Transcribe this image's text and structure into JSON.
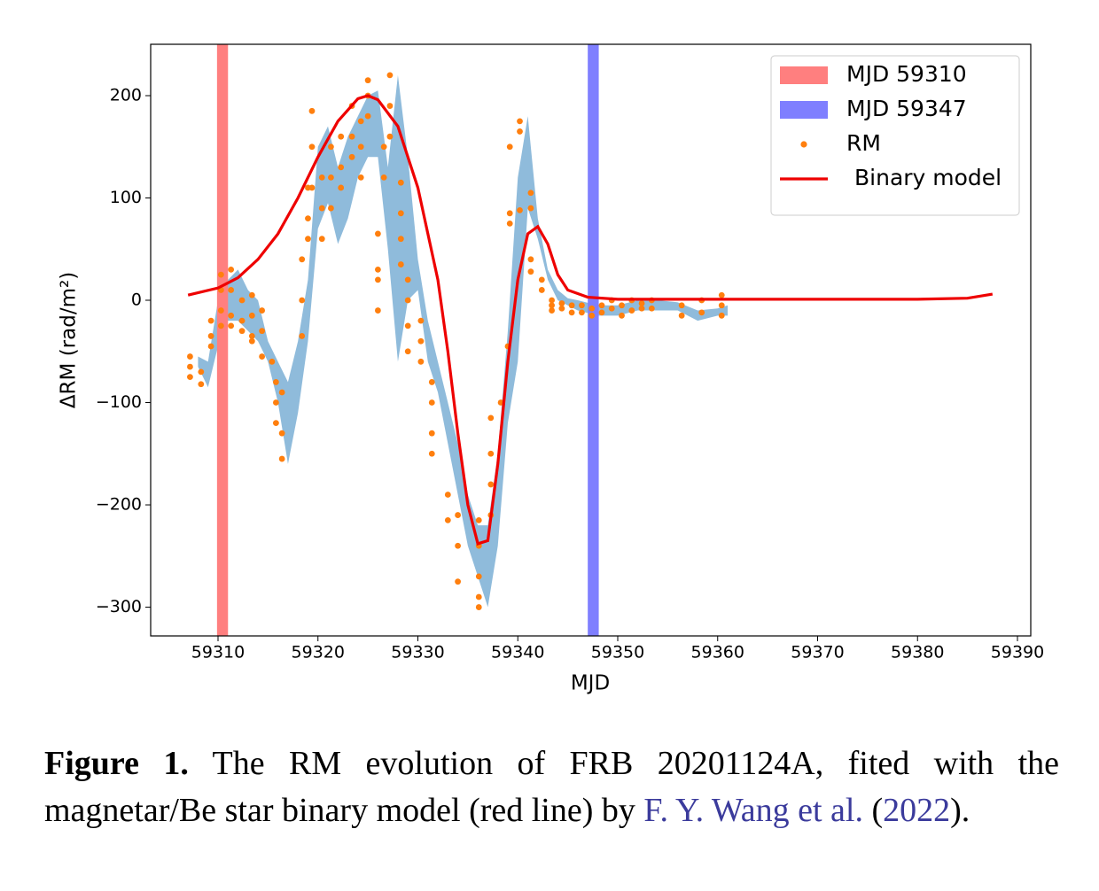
{
  "chart_data": {
    "type": "line",
    "xlabel": "MJD",
    "ylabel": "ΔRM (rad/m²)",
    "xlim": [
      59303.26,
      59391.33
    ],
    "ylim": [
      -328.1,
      250.2
    ],
    "xticks": [
      59310,
      59320,
      59330,
      59340,
      59350,
      59360,
      59370,
      59380,
      59390
    ],
    "yticks": [
      {
        "value": -300,
        "label": "−300"
      },
      {
        "value": -200,
        "label": "−200"
      },
      {
        "value": -100,
        "label": "−100"
      },
      0,
      100,
      200
    ],
    "legend": "upper right",
    "spans": [
      {
        "name": "MJD 59310",
        "color": "#ff7f7f",
        "xrange": [
          59309.9,
          59311.0
        ]
      },
      {
        "name": "MJD 59347",
        "color": "#7f7fff",
        "xrange": [
          59347.0,
          59348.1
        ]
      }
    ],
    "band": {
      "color": "#8fbbdb",
      "x": [
        59308,
        59309,
        59310,
        59311,
        59312,
        59313,
        59314,
        59315,
        59316,
        59317,
        59318,
        59319,
        59320,
        59321,
        59322,
        59323,
        59324,
        59325,
        59326,
        59327,
        59328,
        59329,
        59330,
        59331,
        59332,
        59333,
        59334,
        59335,
        59336,
        59337,
        59338,
        59339,
        59340,
        59341,
        59342,
        59343,
        59344,
        59345,
        59346,
        59348,
        59350,
        59352,
        59354,
        59356,
        59358,
        59360,
        59361
      ],
      "lower": [
        -65,
        -85,
        -45,
        -20,
        -20,
        -30,
        -40,
        -60,
        -100,
        -160,
        -110,
        -40,
        70,
        95,
        55,
        80,
        120,
        140,
        140,
        50,
        -60,
        0,
        10,
        -60,
        -90,
        -140,
        -190,
        -240,
        -270,
        -300,
        -240,
        -120,
        -60,
        90,
        60,
        20,
        0,
        -5,
        -10,
        -15,
        -15,
        -10,
        -10,
        -10,
        -20,
        -15,
        -15
      ],
      "upper": [
        -55,
        -60,
        0,
        20,
        30,
        10,
        0,
        -40,
        -60,
        -80,
        -40,
        20,
        150,
        170,
        130,
        160,
        180,
        200,
        205,
        130,
        220,
        140,
        40,
        -20,
        -60,
        -100,
        -140,
        -190,
        -220,
        -220,
        -150,
        -30,
        120,
        180,
        80,
        30,
        10,
        2,
        0,
        -5,
        -5,
        0,
        0,
        -2,
        -10,
        -8,
        -5
      ]
    },
    "series": [
      {
        "name": "RM",
        "type": "scatter",
        "color": "#ff7f0e",
        "x": [
          59307.2,
          59307.2,
          59307.2,
          59308.3,
          59308.3,
          59309.3,
          59309.3,
          59309.3,
          59310.3,
          59310.3,
          59310.3,
          59310.3,
          59311.3,
          59311.3,
          59311.3,
          59311.3,
          59312.4,
          59312.4,
          59312.4,
          59313.4,
          59313.4,
          59313.4,
          59313.4,
          59314.4,
          59314.4,
          59314.4,
          59315.4,
          59315.8,
          59315.8,
          59315.8,
          59316.4,
          59316.4,
          59316.4,
          59318.4,
          59318.4,
          59318.4,
          59319.0,
          59319.0,
          59319.0,
          59319.4,
          59319.4,
          59319.4,
          59320.4,
          59320.4,
          59320.4,
          59321.3,
          59321.3,
          59321.3,
          59322.3,
          59322.3,
          59322.3,
          59323.4,
          59323.4,
          59323.4,
          59324.3,
          59324.3,
          59324.3,
          59325.0,
          59325.0,
          59325.0,
          59326.0,
          59326.0,
          59326.0,
          59326.0,
          59326.6,
          59326.6,
          59327.2,
          59327.2,
          59327.2,
          59328.3,
          59328.3,
          59328.3,
          59328.3,
          59329.0,
          59329.0,
          59329.0,
          59329.0,
          59330.3,
          59330.3,
          59330.3,
          59331.4,
          59331.4,
          59331.4,
          59331.4,
          59333.0,
          59333.0,
          59334.0,
          59334.0,
          59334.0,
          59336.1,
          59336.1,
          59336.1,
          59336.1,
          59336.1,
          59337.3,
          59337.3,
          59337.3,
          59337.3,
          59338.3,
          59339.0,
          59339.2,
          59339.2,
          59339.2,
          59340.2,
          59340.2,
          59340.2,
          59341.3,
          59341.3,
          59341.3,
          59341.3,
          59342.4,
          59342.4,
          59343.4,
          59343.4,
          59343.4,
          59344.4,
          59344.4,
          59345.4,
          59345.4,
          59346.4,
          59346.4,
          59347.4,
          59347.4,
          59348.4,
          59348.4,
          59349.4,
          59349.4,
          59350.4,
          59350.4,
          59351.4,
          59351.4,
          59352.4,
          59352.4,
          59353.4,
          59353.4,
          59356.4,
          59356.4,
          59358.4,
          59358.4,
          59360.4,
          59360.4,
          59360.4
        ],
        "values": [
          -55,
          -65,
          -75,
          -70,
          -82,
          -20,
          -35,
          -45,
          10,
          -10,
          -25,
          25,
          30,
          10,
          -15,
          -25,
          0,
          -20,
          -30,
          5,
          -15,
          -35,
          -40,
          -10,
          -30,
          -55,
          -60,
          -80,
          -100,
          -120,
          -90,
          -130,
          -155,
          40,
          0,
          -35,
          110,
          80,
          60,
          185,
          150,
          110,
          120,
          90,
          60,
          150,
          120,
          90,
          160,
          130,
          110,
          190,
          160,
          140,
          175,
          150,
          120,
          215,
          200,
          180,
          65,
          30,
          20,
          -10,
          150,
          120,
          220,
          190,
          160,
          115,
          85,
          60,
          35,
          20,
          0,
          -25,
          -50,
          -20,
          -40,
          -60,
          -80,
          -100,
          -130,
          -150,
          -190,
          -215,
          -210,
          -240,
          -275,
          -215,
          -240,
          -270,
          -290,
          -300,
          -115,
          -150,
          -180,
          -210,
          -100,
          -45,
          150,
          85,
          75,
          175,
          165,
          88,
          105,
          90,
          40,
          28,
          20,
          10,
          0,
          -5,
          -10,
          -3,
          -8,
          -5,
          -12,
          -5,
          -12,
          -8,
          -15,
          -5,
          -12,
          0,
          -8,
          -5,
          -15,
          0,
          -10,
          -3,
          -8,
          0,
          -8,
          -5,
          -15,
          0,
          -12,
          5,
          -5,
          -15
        ]
      },
      {
        "name": "Binary model",
        "type": "line",
        "color": "#ee0000",
        "x": [
          59307,
          59310,
          59312,
          59314,
          59316,
          59318,
          59320,
          59322,
          59324,
          59325,
          59326,
          59328,
          59330,
          59332,
          59333,
          59334,
          59335,
          59336,
          59337,
          59338,
          59339,
          59340,
          59341,
          59342,
          59343,
          59344,
          59345,
          59347,
          59350,
          59360,
          59370,
          59380,
          59385,
          59387.5
        ],
        "values": [
          5,
          12,
          22,
          40,
          65,
          100,
          140,
          175,
          197,
          200,
          196,
          170,
          110,
          20,
          -50,
          -130,
          -200,
          -238,
          -235,
          -160,
          -60,
          20,
          65,
          72,
          55,
          25,
          10,
          3,
          1,
          1,
          1,
          1,
          2,
          6
        ]
      }
    ]
  },
  "caption": {
    "label": "Figure 1.",
    "text": "The RM evolution of FRB 20201124A, fited with the magnetar/Be star binary model (red line) by",
    "author": "F. Y. Wang et al.",
    "open": "(",
    "year": "2022",
    "close": ")."
  }
}
